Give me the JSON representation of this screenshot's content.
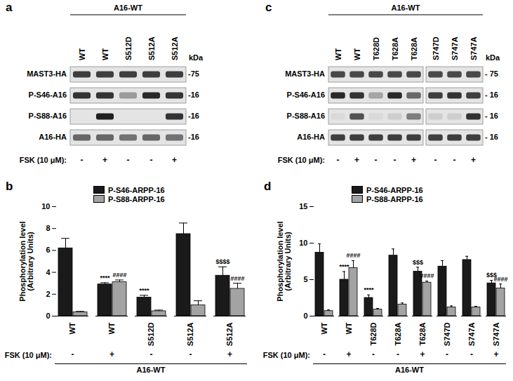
{
  "blots": [
    {
      "panel": "a",
      "header": "A16-WT",
      "lanes": [
        "WT",
        "WT",
        "S512D",
        "S512A",
        "S512A"
      ],
      "groups": [
        5
      ],
      "kda_label": "kDa",
      "rows": [
        {
          "label": "MAST3-HA",
          "kda": "-75",
          "bands": [
            0.8,
            0.8,
            0.8,
            0.8,
            0.8
          ]
        },
        {
          "label": "P-S46-A16",
          "kda": "-16",
          "bands": [
            0.85,
            0.85,
            0.35,
            0.9,
            0.85
          ]
        },
        {
          "label": "P-S88-A16",
          "kda": "-16",
          "bands": [
            0,
            0.95,
            0,
            0,
            0.85
          ]
        },
        {
          "label": "A16-HA",
          "kda": "-16",
          "bands": [
            0.6,
            0.6,
            0.55,
            0.6,
            0.55
          ]
        }
      ],
      "fsk_label": "FSK (10 μM):",
      "fsk": [
        "-",
        "+",
        "-",
        "-",
        "+"
      ]
    },
    {
      "panel": "c",
      "header": "A16-WT",
      "lanes": [
        "WT",
        "WT",
        "T628D",
        "T628A",
        "T628A",
        "S747D",
        "S747A",
        "S747A"
      ],
      "groups": [
        5,
        3
      ],
      "kda_label": "kDa",
      "rows": [
        {
          "label": "MAST3-HA",
          "kda": "- 75",
          "bands": [
            0.75,
            0.75,
            0.75,
            0.75,
            0.75,
            0.75,
            0.75,
            0.75
          ]
        },
        {
          "label": "P-S46-A16",
          "kda": "- 16",
          "bands": [
            0.9,
            0.85,
            0.3,
            0.9,
            0.6,
            0.8,
            0.85,
            0.8
          ]
        },
        {
          "label": "P-S88-A16",
          "kda": "- 16",
          "bands": [
            0.05,
            0.7,
            0.05,
            0.1,
            0.5,
            0.1,
            0.1,
            0.85
          ]
        },
        {
          "label": "A16-HA",
          "kda": "- 16",
          "bands": [
            0.8,
            0.8,
            0.8,
            0.8,
            0.8,
            0.8,
            0.8,
            0.8
          ]
        }
      ],
      "fsk_label": "FSK (10 μM):",
      "fsk": [
        "-",
        "+",
        "-",
        "-",
        "+",
        "-",
        "-",
        "+"
      ]
    }
  ],
  "chart_data": [
    {
      "type": "bar",
      "panel": "b",
      "categories": [
        "WT",
        "WT",
        "S512D",
        "S512A",
        "S512A"
      ],
      "series": [
        {
          "name": "P-S46-ARPP-16",
          "color": "#1a1a1a",
          "values": [
            6.2,
            2.9,
            1.7,
            7.5,
            3.7
          ],
          "errors": [
            0.9,
            0.15,
            0.2,
            1.0,
            0.8
          ],
          "annotations": [
            null,
            "****",
            "****",
            null,
            "$$$$"
          ]
        },
        {
          "name": "P-S88-ARPP-16",
          "color": "#a3a3a3",
          "values": [
            0.35,
            3.1,
            0.45,
            1.0,
            2.5
          ],
          "errors": [
            0.08,
            0.2,
            0.1,
            0.4,
            0.5
          ],
          "annotations": [
            null,
            "####",
            null,
            null,
            "####"
          ]
        }
      ],
      "ylabel": "Phosphorylation level\n(Arbitrary Units)",
      "ylim": [
        0,
        10
      ],
      "yticks": [
        0,
        2,
        4,
        6,
        8,
        10
      ],
      "grid": false,
      "legend": "top",
      "fsk_label": "FSK (10 μM):",
      "fsk": [
        "-",
        "+",
        "-",
        "-",
        "+"
      ],
      "group_label": "A16-WT"
    },
    {
      "type": "bar",
      "panel": "d",
      "categories": [
        "WT",
        "WT",
        "T628D",
        "T628A",
        "T628A",
        "S747D",
        "S747A",
        "S747A"
      ],
      "series": [
        {
          "name": "P-S46-ARPP-16",
          "color": "#1a1a1a",
          "values": [
            8.7,
            5.0,
            2.5,
            8.3,
            6.1,
            6.8,
            7.7,
            4.5
          ],
          "errors": [
            1.2,
            1.1,
            0.4,
            0.9,
            0.6,
            0.8,
            0.5,
            0.4
          ],
          "annotations": [
            null,
            "****",
            "****",
            null,
            "$$$",
            null,
            null,
            "$$$"
          ]
        },
        {
          "name": "P-S88-ARPP-16",
          "color": "#a3a3a3",
          "values": [
            0.7,
            6.6,
            0.9,
            1.6,
            4.6,
            1.2,
            1.2,
            3.8
          ],
          "errors": [
            0.15,
            1.0,
            0.15,
            0.2,
            0.2,
            0.2,
            0.15,
            0.6
          ],
          "annotations": [
            null,
            "####",
            null,
            null,
            "####",
            null,
            null,
            "####"
          ]
        }
      ],
      "ylabel": "Phosphorylation level\n(Arbitrary Units)",
      "ylim": [
        0,
        15
      ],
      "yticks": [
        0,
        5,
        10,
        15
      ],
      "grid": false,
      "legend": "top",
      "fsk_label": "FSK (10 μM):",
      "fsk": [
        "-",
        "+",
        "-",
        "-",
        "+",
        "-",
        "-",
        "+"
      ],
      "group_label": "A16-WT"
    }
  ]
}
